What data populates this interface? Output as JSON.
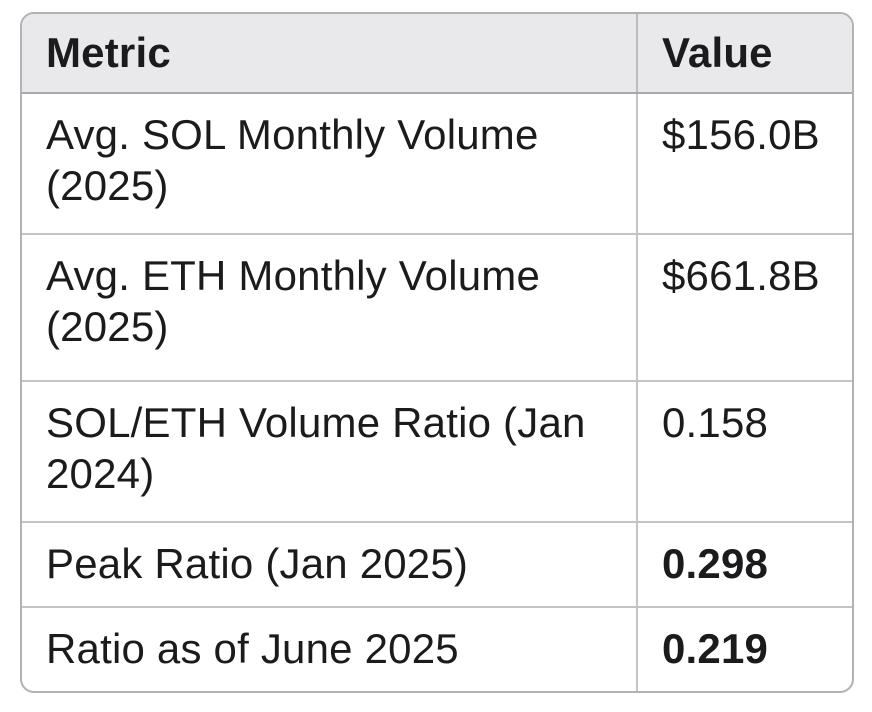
{
  "chart_data": {
    "type": "table",
    "columns": [
      "Metric",
      "Value"
    ],
    "rows": [
      [
        "Avg. SOL Monthly Volume (2025)",
        "$156.0B"
      ],
      [
        "Avg. ETH Monthly Volume (2025)",
        "$661.8B"
      ],
      [
        "SOL/ETH Volume Ratio (Jan 2024)",
        "0.158"
      ],
      [
        "Peak Ratio (Jan 2025)",
        "0.298"
      ],
      [
        "Ratio as of June 2025",
        "0.219"
      ]
    ],
    "value_bold": [
      false,
      false,
      false,
      true,
      true
    ],
    "layout": {
      "header_position": "top",
      "grid": "on",
      "corner_style": "rounded"
    },
    "colors": {
      "header_bg": "#e9e9eb",
      "body_bg": "#ffffff",
      "outer_border": "#b2b2b4",
      "inner_border": "#c4c4c6",
      "header_border": "#a9a9ab",
      "text": "#1b1b1d"
    }
  }
}
